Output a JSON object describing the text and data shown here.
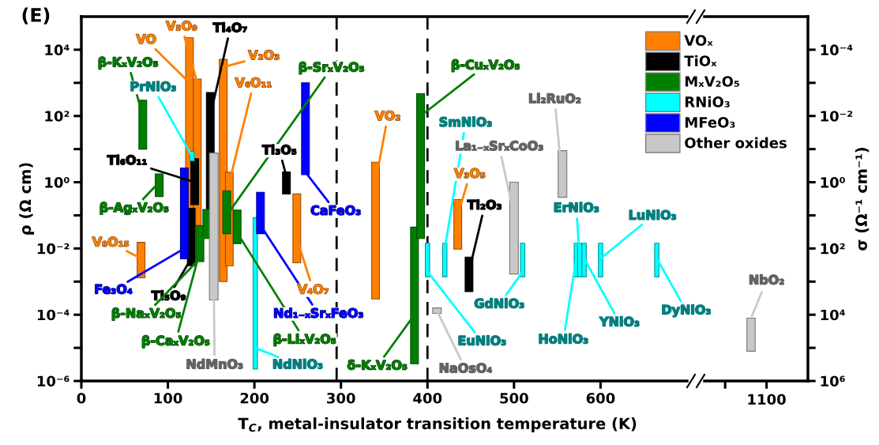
{
  "chart_data": [
    {
      "type": "bar",
      "title": "(E)",
      "xlabel": "T$_{C}$, metal-insulator transition temperature (K)",
      "ylabel": "ρ (Ω cm)",
      "xlim": [
        0,
        700
      ],
      "xticks": [
        0,
        100,
        200,
        300,
        400,
        500,
        600
      ],
      "ylim": [
        1e-06,
        100000.0
      ],
      "log": "y",
      "legend": "top right",
      "yticks": [
        {
          "value": 1e-06,
          "label": "10⁻⁶"
        },
        {
          "value": 1e-05,
          "label": null
        },
        {
          "value": 0.0001,
          "label": "10⁻⁴"
        },
        {
          "value": 0.001,
          "label": null
        },
        {
          "value": 0.01,
          "label": "10⁻²"
        },
        {
          "value": 0.1,
          "label": null
        },
        {
          "value": 1,
          "label": "10⁰"
        },
        {
          "value": 10,
          "label": null
        },
        {
          "value": 100,
          "label": "10²"
        },
        {
          "value": 1000,
          "label": null
        },
        {
          "value": 10000,
          "label": "10⁴"
        }
      ],
      "series": [
        {
          "name": "VOₓ",
          "color": "#ff8000",
          "x": [
            69,
            125,
            134,
            164,
            171,
            249,
            340,
            435
          ],
          "base": [
            0.0013,
            0.01,
            0.05,
            0.001,
            0.003,
            0.0037,
            0.0003,
            0.0095
          ],
          "values": [
            0.014,
            23000,
            1300,
            5100,
            2.0,
            0.44,
            4.0,
            0.29
          ]
        },
        {
          "name": "TiOₓ",
          "color": "#000000",
          "x": [
            127,
            131,
            149,
            237,
            448
          ],
          "base": [
            0.003,
            0.21,
            0.024,
            0.44,
            0.0005
          ],
          "values": [
            0.16,
            4.9,
            510,
            1.6,
            0.005
          ]
        },
        {
          "name": "MₓV₂O₅",
          "color": "#007f00",
          "x": [
            71,
            90,
            137,
            145,
            168,
            180,
            385,
            392
          ],
          "base": [
            10,
            0.37,
            0.004,
            0.02,
            0.028,
            0.014,
            3.3e-06,
            0.02
          ],
          "values": [
            290,
            1.4,
            0.045,
            0.13,
            0.52,
            0.13,
            0.044,
            470
          ]
        },
        {
          "name": "RNiO₃",
          "color": "#00ffff",
          "x": [
            128,
            201,
            400,
            420,
            510,
            572,
            576,
            581,
            600,
            665
          ],
          "base": [
            4.4,
            2.3e-06,
            0.0014,
            0.0014,
            0.0014,
            0.0014,
            0.0014,
            0.0014,
            0.0014,
            0.0014
          ],
          "values": [
            4.1,
            0.085,
            0.013,
            0.013,
            0.013,
            0.013,
            0.013,
            0.013,
            0.013,
            0.013
          ]
        },
        {
          "name": "MFeO₃",
          "color": "#0000ff",
          "x": [
            119,
            207,
            259
          ],
          "base": [
            0.0049,
            0.028,
            1.7
          ],
          "values": [
            2.7,
            0.47,
            1000
          ]
        },
        {
          "name": "Other oxides",
          "color": "#c8c8c8",
          "x": [
            153,
            411,
            500,
            556
          ],
          "base": [
            0.00028,
            0.00011,
            0.0017,
            0.35
          ],
          "values": [
            7.6,
            5e-05,
            1.0,
            8.6
          ]
        }
      ],
      "ref_lines": [
        {
          "axis": "x",
          "value": 295,
          "color": "#000000",
          "line_style": "dashed"
        },
        {
          "axis": "x",
          "value": 400,
          "color": "#000000",
          "line_style": "dashed"
        }
      ],
      "annotations": [
        {
          "text": "VO",
          "x": 125,
          "y": 1000
        },
        {
          "text": "V₅O₉",
          "x": 134,
          "y": 1000
        },
        {
          "text": "Ti₄O₇",
          "x": 149,
          "y": 100
        },
        {
          "text": "V₂O₃",
          "x": 164,
          "y": 3000
        },
        {
          "text": "V₆O₁₁",
          "x": 171,
          "y": 1
        },
        {
          "text": "β-KₓV₂O₅",
          "x": 71,
          "y": 100
        },
        {
          "text": "PrNiO₃",
          "x": 128,
          "y": 6
        },
        {
          "text": "β-SrₓV₂O₅",
          "x": 168,
          "y": 0.1
        },
        {
          "text": "Ti₆O₁₁",
          "x": 131,
          "y": 1
        },
        {
          "text": "Ti₃O₅",
          "x": 237,
          "y": 1.5
        },
        {
          "text": "β-AgₓV₂O₅",
          "x": 90,
          "y": 1
        },
        {
          "text": "CaFeO₃",
          "x": 259,
          "y": 2
        },
        {
          "text": "V₈O₁₅",
          "x": 69,
          "y": 0.005
        },
        {
          "text": "Fe₃O₄",
          "x": 119,
          "y": 0.01
        },
        {
          "text": "Ti₅O₉",
          "x": 127,
          "y": 0.005
        },
        {
          "text": "β-NaₓV₂O₅",
          "x": 137,
          "y": 0.005
        },
        {
          "text": "β-CaₓV₂O₅",
          "x": 145,
          "y": 0.05
        },
        {
          "text": "NdMnO₃",
          "x": 153,
          "y": 0.001
        },
        {
          "text": "NdNiO₃",
          "x": 201,
          "y": 1e-05
        },
        {
          "text": "β-LiₓV₂O₅",
          "x": 180,
          "y": 0.03
        },
        {
          "text": "Nd₁₋ₓSrₓFeO₃",
          "x": 207,
          "y": 0.05
        },
        {
          "text": "V₄O₇",
          "x": 249,
          "y": 0.02
        },
        {
          "text": "VO₂",
          "x": 340,
          "y": 1
        },
        {
          "text": "β-CuₓV₂O₅",
          "x": 392,
          "y": 100
        },
        {
          "text": "δ-KₓV₂O₅",
          "x": 385,
          "y": 0.0001
        },
        {
          "text": "SmNiO₃",
          "x": 420,
          "y": 0.01
        },
        {
          "text": "La₁₋ₓSrₓCoO₃",
          "x": 500,
          "y": 0.1
        },
        {
          "text": "V₃O₅",
          "x": 435,
          "y": 0.1
        },
        {
          "text": "Ti₂O₃",
          "x": 448,
          "y": 0.002
        },
        {
          "text": "Li₂RuO₂",
          "x": 556,
          "y": 1
        },
        {
          "text": "GdNiO₃",
          "x": 510,
          "y": 0.002
        },
        {
          "text": "EuNiO₃",
          "x": 400,
          "y": 0.002
        },
        {
          "text": "NaOsO₄",
          "x": 411,
          "y": 0.00013
        },
        {
          "text": "ErNiO₃",
          "x": 576,
          "y": 0.005
        },
        {
          "text": "LuNiO₃",
          "x": 600,
          "y": 0.005
        },
        {
          "text": "HoNiO₃",
          "x": 572,
          "y": 0.005
        },
        {
          "text": "YNiO₃",
          "x": 581,
          "y": 0.005
        },
        {
          "text": "DyNiO₃",
          "x": 665,
          "y": 0.005
        }
      ]
    },
    {
      "type": "bar",
      "categories": [
        null
      ],
      "log": "y",
      "tick_labels": "y",
      "ylabel": "σ (Ω⁻¹ cm⁻¹)",
      "ylim": [
        1000000.0,
        1e-05
      ],
      "yticks": [
        {
          "value": 1000000.0,
          "label": "10⁶"
        },
        {
          "value": 100000.0,
          "label": null
        },
        {
          "value": 10000.0,
          "label": "10⁴"
        },
        {
          "value": 1000,
          "label": null
        },
        {
          "value": 100,
          "label": "10²"
        },
        {
          "value": 10,
          "label": null
        },
        {
          "value": 1,
          "label": "10⁰"
        },
        {
          "value": 0.1,
          "label": null
        },
        {
          "value": 0.01,
          "label": "10⁻²"
        },
        {
          "value": 0.001,
          "label": null
        },
        {
          "value": 0.0001,
          "label": "10⁻⁴"
        }
      ],
      "series": [
        {
          "color": "#c8c8c8",
          "base": [
            12700
          ],
          "values": [
            114000
          ]
        }
      ],
      "annotations": [
        "NbO₂",
        "1100"
      ]
    }
  ]
}
